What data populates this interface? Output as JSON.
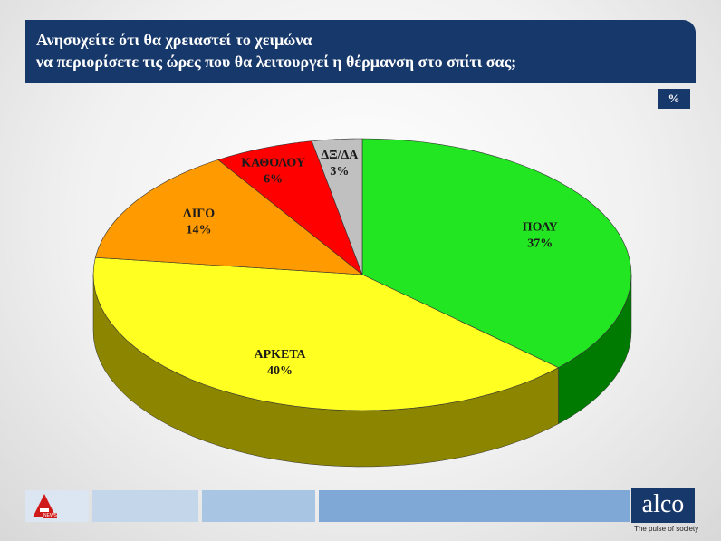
{
  "chart_data": {
    "type": "pie3d",
    "title": "Ανησυχείτε ότι θα χρειαστεί το χειμώνα",
    "subtitle": "να περιορίσετε τις ώρες που θα λειτουργεί η θέρμανση στο σπίτι σας;",
    "unit_label": "%",
    "categories": [
      "ΠΟΛΥ",
      "ΑΡΚΕΤΑ",
      "ΛΙΓΟ",
      "ΚΑΘΟΛΟΥ",
      "ΔΞ/ΔΑ"
    ],
    "values": [
      37,
      40,
      14,
      6,
      3
    ],
    "value_labels": [
      "37%",
      "40%",
      "14%",
      "6%",
      "3%"
    ],
    "colors": [
      "#22e622",
      "#ffff22",
      "#ff9a00",
      "#ff0000",
      "#c0c0c0"
    ],
    "side_colors": [
      "#007a00",
      "#8c8500",
      "#b86a00",
      "#a00000",
      "#808080"
    ]
  },
  "branding": {
    "logo": "alco",
    "tagline": "The pulse of society",
    "badge": "NEWS"
  }
}
